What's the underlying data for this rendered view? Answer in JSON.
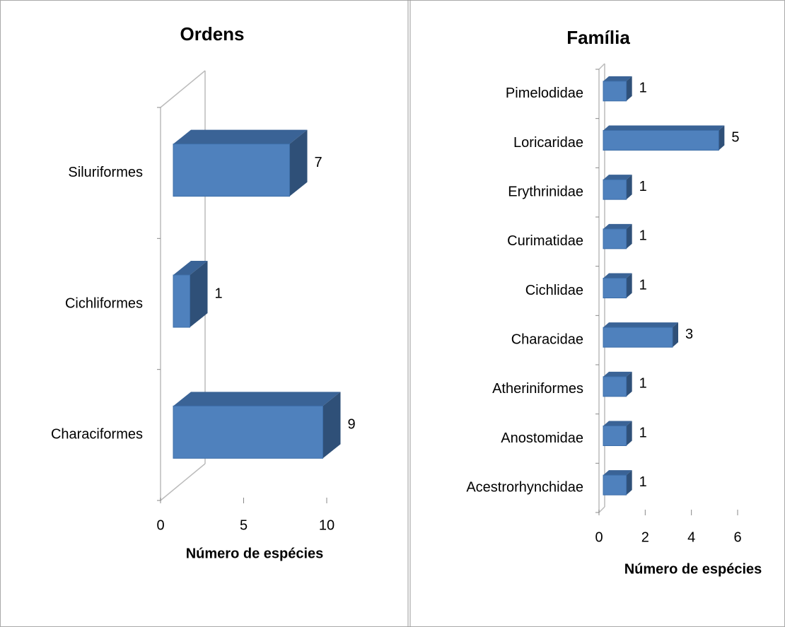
{
  "chart_data": [
    {
      "type": "bar",
      "orientation": "horizontal",
      "title": "Ordens",
      "categories": [
        "Characiformes",
        "Cichliformes",
        "Siluriformes"
      ],
      "values": [
        9,
        1,
        7
      ],
      "color": "#4f81bd",
      "xlim": [
        0,
        10
      ],
      "xticks": [
        0,
        5,
        10
      ],
      "xlabel": "Número de espécies"
    },
    {
      "type": "bar",
      "orientation": "horizontal",
      "title": "Família",
      "categories": [
        "Acestrorhynchidae",
        "Anostomidae",
        "Atheriniformes",
        "Characidae",
        "Cichlidae",
        "Curimatidae",
        "Erythrinidae",
        "Loricaridae",
        "Pimelodidae"
      ],
      "values": [
        1,
        1,
        1,
        3,
        1,
        1,
        1,
        5,
        1
      ],
      "color": "#4f81bd",
      "xlim": [
        0,
        6
      ],
      "xticks": [
        0,
        2,
        4,
        6
      ],
      "xlabel": "Número de espécies"
    }
  ]
}
